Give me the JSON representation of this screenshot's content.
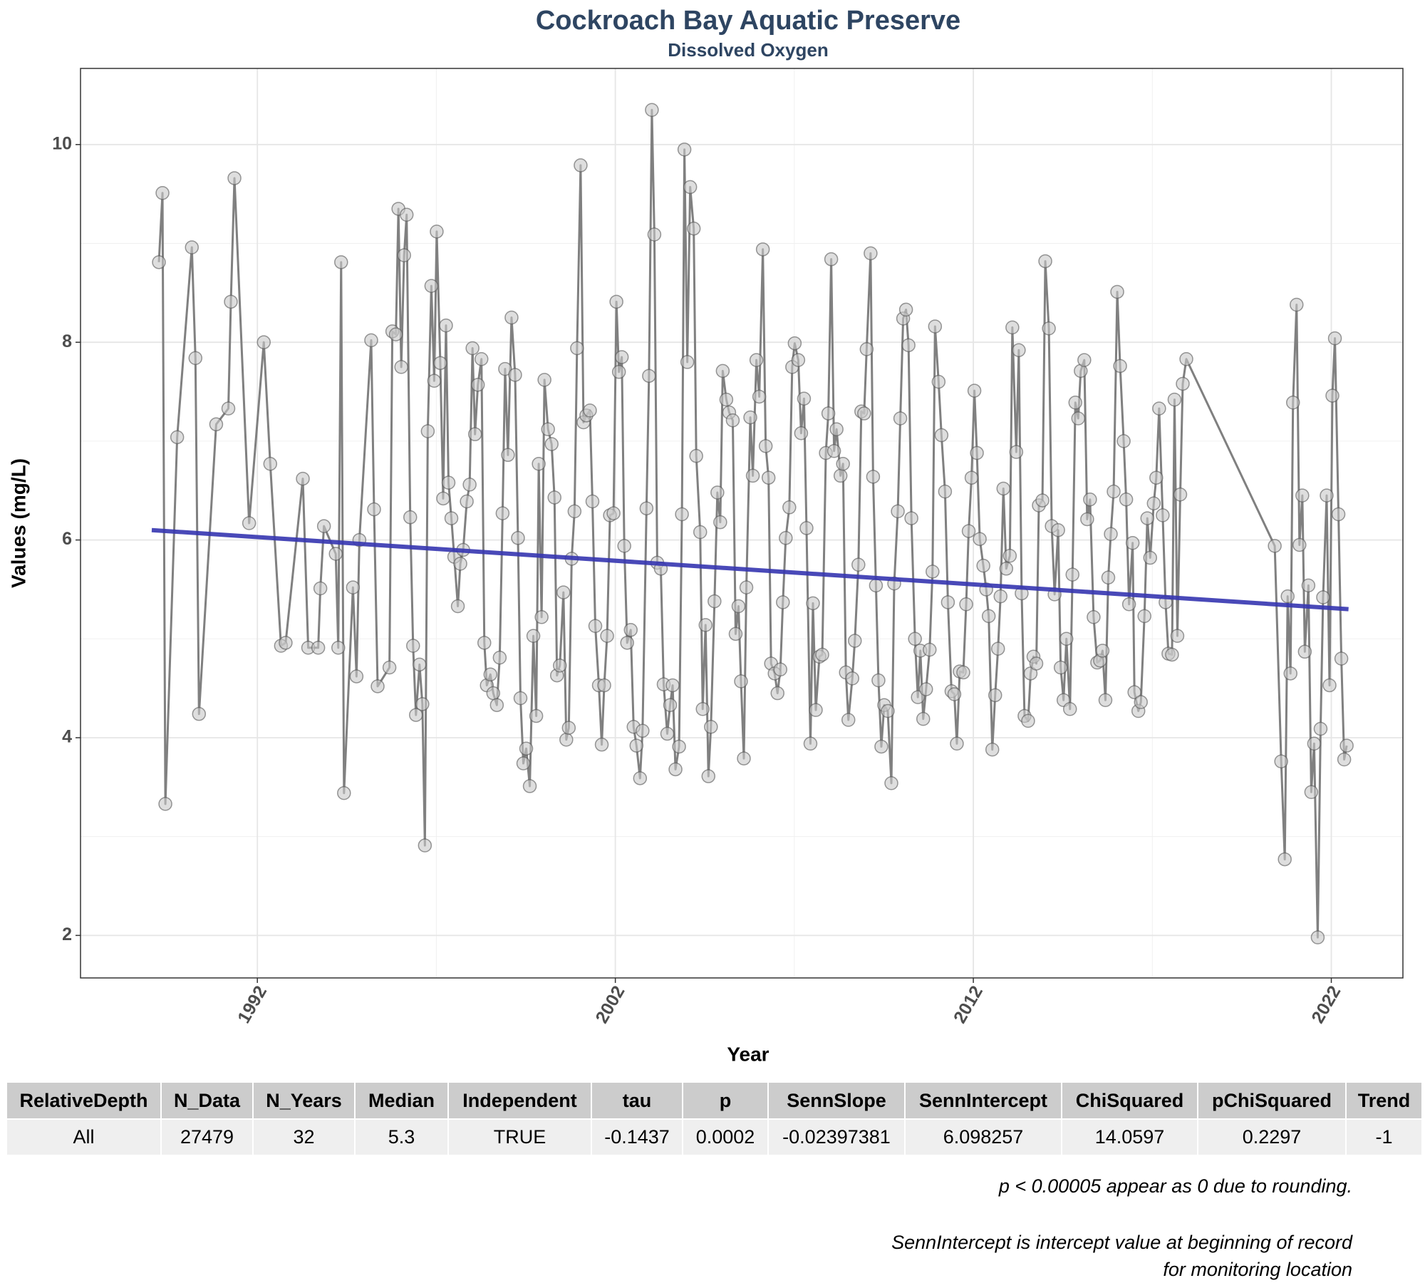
{
  "chart_data": {
    "type": "line",
    "title": "Cockroach Bay Aquatic Preserve",
    "subtitle": "Dissolved Oxygen",
    "x_label": "Year",
    "y_label": "Values (mg/L)",
    "xlim": [
      1987.06,
      2024.0
    ],
    "ylim": [
      1.57,
      10.77
    ],
    "xticks": [
      1992,
      2002,
      2012,
      2022
    ],
    "yticks": [
      2,
      4,
      6,
      8,
      10
    ],
    "x_minor_ticks": [
      1997,
      2007,
      2017
    ],
    "y_minor_ticks": [
      3,
      5,
      7,
      9
    ],
    "grid": true,
    "color": "#808080",
    "marker_color": "#c8c8c8",
    "x": [
      1989.25,
      1989.35,
      1989.43,
      1989.76,
      1990.17,
      1990.27,
      1990.37,
      1990.85,
      1991.19,
      1991.26,
      1991.36,
      1991.77,
      1992.18,
      1992.36,
      1992.66,
      1992.79,
      1993.27,
      1993.42,
      1993.7,
      1993.76,
      1993.86,
      1994.19,
      1994.26,
      1994.34,
      1994.42,
      1994.67,
      1994.77,
      1994.85,
      1995.18,
      1995.26,
      1995.36,
      1995.69,
      1995.77,
      1995.87,
      1995.94,
      1996.02,
      1996.1,
      1996.17,
      1996.27,
      1996.35,
      1996.43,
      1996.53,
      1996.61,
      1996.68,
      1996.76,
      1996.86,
      1996.94,
      1997.01,
      1997.11,
      1997.19,
      1997.27,
      1997.34,
      1997.42,
      1997.5,
      1997.6,
      1997.67,
      1997.75,
      1997.85,
      1997.93,
      1998.01,
      1998.08,
      1998.16,
      1998.26,
      1998.34,
      1998.41,
      1998.51,
      1998.59,
      1998.69,
      1998.77,
      1998.85,
      1998.92,
      1999.0,
      1999.1,
      1999.2,
      1999.28,
      1999.35,
      1999.43,
      1999.51,
      1999.61,
      1999.71,
      1999.79,
      1999.86,
      1999.94,
      2000.02,
      2000.12,
      2000.22,
      2000.3,
      2000.37,
      2000.45,
      2000.55,
      2000.63,
      2000.7,
      2000.78,
      2000.86,
      2000.93,
      2001.03,
      2001.11,
      2001.19,
      2001.29,
      2001.36,
      2001.44,
      2001.54,
      2001.62,
      2001.69,
      2001.77,
      2001.85,
      2001.95,
      2002.03,
      2002.1,
      2002.18,
      2002.25,
      2002.33,
      2002.43,
      2002.51,
      2002.59,
      2002.69,
      2002.76,
      2002.87,
      2002.94,
      2003.02,
      2003.09,
      2003.17,
      2003.27,
      2003.35,
      2003.45,
      2003.53,
      2003.6,
      2003.68,
      2003.78,
      2003.86,
      2003.93,
      2004.01,
      2004.09,
      2004.19,
      2004.26,
      2004.37,
      2004.44,
      2004.52,
      2004.6,
      2004.67,
      2004.77,
      2004.85,
      2004.93,
      2005.0,
      2005.1,
      2005.18,
      2005.28,
      2005.36,
      2005.44,
      2005.51,
      2005.59,
      2005.66,
      2005.77,
      2005.84,
      2005.94,
      2006.02,
      2006.12,
      2006.2,
      2006.28,
      2006.35,
      2006.45,
      2006.53,
      2006.61,
      2006.68,
      2006.76,
      2006.86,
      2006.94,
      2007.01,
      2007.11,
      2007.19,
      2007.27,
      2007.34,
      2007.45,
      2007.52,
      2007.6,
      2007.7,
      2007.78,
      2007.88,
      2007.95,
      2008.03,
      2008.11,
      2008.18,
      2008.29,
      2008.36,
      2008.44,
      2008.51,
      2008.62,
      2008.69,
      2008.79,
      2008.87,
      2008.95,
      2009.02,
      2009.13,
      2009.2,
      2009.28,
      2009.35,
      2009.43,
      2009.51,
      2009.61,
      2009.71,
      2009.79,
      2009.89,
      2009.96,
      2010.04,
      2010.12,
      2010.19,
      2010.27,
      2010.37,
      2010.45,
      2010.52,
      2010.6,
      2010.68,
      2010.78,
      2010.86,
      2010.93,
      2011.03,
      2011.11,
      2011.21,
      2011.29,
      2011.39,
      2011.47,
      2011.54,
      2011.62,
      2011.72,
      2011.8,
      2011.87,
      2011.95,
      2012.03,
      2012.1,
      2012.18,
      2012.28,
      2012.36,
      2012.43,
      2012.53,
      2012.61,
      2012.69,
      2012.76,
      2012.84,
      2012.92,
      2013.02,
      2013.09,
      2013.2,
      2013.27,
      2013.35,
      2013.43,
      2013.53,
      2013.6,
      2013.68,
      2013.76,
      2013.83,
      2013.93,
      2014.01,
      2014.11,
      2014.19,
      2014.27,
      2014.37,
      2014.44,
      2014.52,
      2014.6,
      2014.7,
      2014.77,
      2014.85,
      2014.93,
      2015.0,
      2015.1,
      2015.18,
      2015.26,
      2015.36,
      2015.46,
      2015.54,
      2015.61,
      2015.69,
      2015.77,
      2015.84,
      2015.92,
      2016.02,
      2016.1,
      2016.2,
      2016.27,
      2016.35,
      2016.45,
      2016.5,
      2016.61,
      2016.68,
      2016.78,
      2016.86,
      2016.94,
      2017.04,
      2017.11,
      2017.19,
      2017.29,
      2017.37,
      2017.45,
      2017.55,
      2017.62,
      2017.7,
      2017.78,
      2017.85,
      2017.95,
      2020.42,
      2020.6,
      2020.7,
      2020.78,
      2020.86,
      2020.93,
      2021.03,
      2021.11,
      2021.19,
      2021.26,
      2021.36,
      2021.44,
      2021.52,
      2021.62,
      2021.7,
      2021.77,
      2021.87,
      2021.95,
      2022.03,
      2022.1,
      2022.2,
      2022.28,
      2022.36,
      2022.43
    ],
    "values": [
      8.81,
      9.51,
      3.33,
      7.04,
      8.96,
      7.84,
      4.24,
      7.17,
      7.33,
      8.41,
      9.66,
      6.17,
      8.0,
      6.77,
      4.93,
      4.96,
      6.62,
      4.91,
      4.91,
      5.51,
      6.14,
      5.86,
      4.91,
      8.81,
      3.44,
      5.52,
      4.62,
      6.0,
      8.02,
      6.31,
      4.52,
      4.71,
      8.11,
      8.08,
      9.35,
      7.75,
      8.88,
      9.29,
      6.23,
      4.93,
      4.23,
      4.74,
      4.34,
      2.91,
      7.1,
      8.57,
      7.61,
      9.12,
      7.79,
      6.42,
      8.17,
      6.58,
      6.22,
      5.83,
      5.33,
      5.76,
      5.9,
      6.39,
      6.56,
      7.94,
      7.07,
      7.57,
      7.83,
      4.96,
      4.53,
      4.64,
      4.45,
      4.33,
      4.81,
      6.27,
      7.73,
      6.86,
      8.25,
      7.67,
      6.02,
      4.4,
      3.74,
      3.89,
      3.51,
      5.03,
      4.22,
      6.77,
      5.22,
      7.62,
      7.12,
      6.97,
      6.43,
      4.63,
      4.73,
      5.47,
      3.98,
      4.1,
      5.81,
      6.29,
      7.94,
      9.79,
      7.19,
      7.26,
      7.31,
      6.39,
      5.13,
      4.53,
      3.93,
      4.53,
      5.03,
      6.25,
      6.27,
      8.41,
      7.7,
      7.85,
      5.94,
      4.96,
      5.09,
      4.11,
      3.92,
      3.59,
      4.07,
      6.32,
      7.66,
      10.35,
      9.09,
      5.77,
      5.71,
      4.54,
      4.04,
      4.33,
      4.53,
      3.68,
      3.91,
      6.26,
      9.95,
      7.8,
      9.57,
      9.15,
      6.85,
      6.08,
      4.29,
      5.14,
      3.61,
      4.11,
      5.38,
      6.48,
      6.18,
      7.71,
      7.42,
      7.29,
      7.21,
      5.05,
      5.33,
      4.57,
      3.79,
      5.52,
      7.24,
      6.65,
      7.82,
      7.45,
      8.94,
      6.95,
      6.63,
      4.75,
      4.65,
      4.45,
      4.69,
      5.37,
      6.02,
      6.33,
      7.75,
      7.99,
      7.82,
      7.08,
      7.43,
      6.12,
      3.94,
      5.36,
      4.28,
      4.82,
      4.84,
      6.88,
      7.28,
      8.84,
      6.9,
      7.12,
      6.65,
      6.77,
      4.66,
      4.18,
      4.6,
      4.98,
      5.75,
      7.3,
      7.28,
      7.93,
      8.9,
      6.64,
      5.54,
      4.58,
      3.91,
      4.33,
      4.27,
      3.54,
      5.56,
      6.29,
      7.23,
      8.24,
      8.33,
      7.97,
      6.22,
      5.0,
      4.41,
      4.88,
      4.19,
      4.49,
      4.89,
      5.68,
      8.16,
      7.6,
      7.06,
      6.49,
      5.37,
      4.47,
      4.44,
      3.94,
      4.67,
      4.66,
      5.35,
      6.09,
      6.63,
      7.51,
      6.88,
      6.01,
      5.74,
      5.5,
      5.23,
      3.88,
      4.43,
      4.9,
      5.43,
      6.52,
      5.71,
      5.84,
      8.15,
      6.89,
      7.92,
      5.46,
      4.22,
      4.17,
      4.65,
      4.82,
      4.75,
      6.35,
      6.4,
      8.82,
      8.14,
      6.14,
      5.45,
      6.1,
      4.71,
      4.38,
      5.0,
      4.29,
      5.65,
      7.39,
      7.23,
      7.71,
      7.82,
      6.21,
      6.41,
      5.22,
      4.76,
      4.78,
      4.88,
      4.38,
      5.62,
      6.06,
      6.49,
      8.51,
      7.76,
      7.0,
      6.41,
      5.35,
      5.97,
      4.46,
      4.27,
      4.36,
      5.23,
      6.22,
      5.82,
      6.37,
      6.63,
      7.33,
      6.25,
      5.37,
      4.85,
      4.84,
      7.42,
      5.03,
      6.46,
      7.58,
      7.83,
      5.94,
      3.76,
      2.77,
      5.43,
      4.65,
      7.39,
      8.38,
      5.95,
      6.45,
      4.87,
      5.54,
      3.45,
      3.94,
      1.98,
      4.09,
      5.42,
      6.45,
      4.53,
      7.46,
      8.04,
      6.26,
      4.8,
      3.78,
      3.92
    ],
    "trend": {
      "x": [
        1989.05,
        2022.48
      ],
      "values": [
        6.1,
        5.3
      ],
      "color": "#3535b0"
    }
  },
  "table": {
    "columns": [
      "RelativeDepth",
      "N_Data",
      "N_Years",
      "Median",
      "Independent",
      "tau",
      "p",
      "SennSlope",
      "SennIntercept",
      "ChiSquared",
      "pChiSquared",
      "Trend"
    ],
    "rows": [
      [
        "All",
        "27479",
        "32",
        "5.3",
        "TRUE",
        "-0.1437",
        "0.0002",
        "-0.02397381",
        "6.098257",
        "14.0597",
        "0.2297",
        "-1"
      ]
    ]
  },
  "notes": [
    "p < 0.00005 appear as 0 due to rounding.",
    "SennIntercept is intercept value at beginning of record for monitoring location"
  ]
}
